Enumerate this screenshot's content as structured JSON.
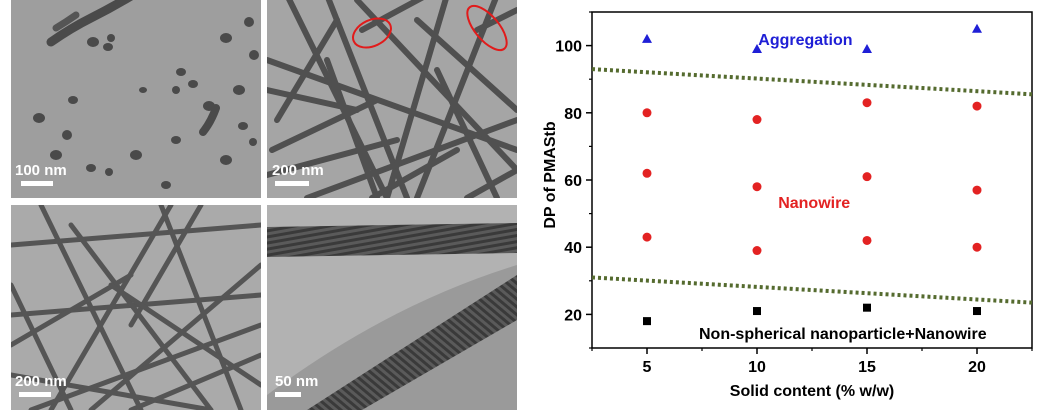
{
  "tem_panels": [
    {
      "id": "a",
      "scale_label": "100 nm",
      "description": "TEM of short non-spherical nanoparticles"
    },
    {
      "id": "b",
      "scale_label": "200 nm",
      "description": "TEM of nanowires with red ellipse highlights"
    },
    {
      "id": "c",
      "scale_label": "200 nm",
      "description": "TEM of long nanowires"
    },
    {
      "id": "d",
      "scale_label": "50 nm",
      "description": "High magnification TEM of striped nanowires"
    }
  ],
  "colors": {
    "aggregation": "#1f1fd6",
    "nanowire": "#e32222",
    "nanoparticle": "#000000",
    "boundary": "#556b2f",
    "highlight": "#e11b1b"
  },
  "chart_data": {
    "type": "scatter",
    "xlabel": "Solid content (% w/w)",
    "ylabel": "DP of PMAStb",
    "xlim": [
      2.5,
      22.5
    ],
    "ylim": [
      10,
      110
    ],
    "xticks": [
      5,
      10,
      15,
      20
    ],
    "yticks": [
      20,
      40,
      60,
      80,
      100
    ],
    "series": [
      {
        "marker": "square",
        "color": "#000000",
        "points": [
          [
            5,
            18
          ],
          [
            10,
            21
          ],
          [
            15,
            22
          ],
          [
            20,
            21
          ]
        ]
      },
      {
        "marker": "circle",
        "color": "#e32222",
        "points": [
          [
            5,
            43
          ],
          [
            5,
            62
          ],
          [
            5,
            80
          ],
          [
            10,
            39
          ],
          [
            10,
            58
          ],
          [
            10,
            78
          ],
          [
            15,
            42
          ],
          [
            15,
            61
          ],
          [
            15,
            83
          ],
          [
            20,
            40
          ],
          [
            20,
            57
          ],
          [
            20,
            82
          ]
        ]
      },
      {
        "marker": "triangle",
        "color": "#1f1fd6",
        "points": [
          [
            5,
            102
          ],
          [
            10,
            99
          ],
          [
            15,
            99
          ],
          [
            20,
            105
          ]
        ]
      }
    ],
    "boundaries": [
      {
        "from": [
          2.5,
          31
        ],
        "to": [
          22.5,
          23.5
        ]
      },
      {
        "from": [
          2.5,
          93
        ],
        "to": [
          22.5,
          85.5
        ]
      }
    ],
    "annotations": [
      {
        "text": "Aggregation",
        "x": 12.2,
        "y": 102,
        "color": "#1f1fd6"
      },
      {
        "text": "Nanowire",
        "x": 12.6,
        "y": 53.5,
        "color": "#e32222"
      },
      {
        "text": "Non-spherical nanoparticle+Nanowire",
        "x": 13.9,
        "y": 14.5,
        "color": "#000000"
      }
    ]
  }
}
